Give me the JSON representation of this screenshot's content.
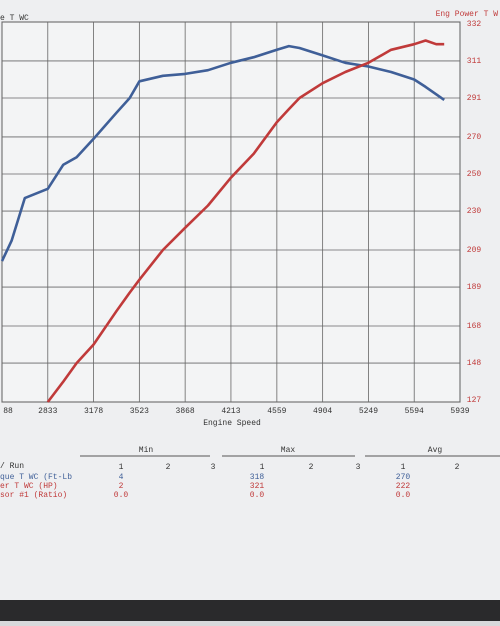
{
  "chart_data": {
    "type": "line",
    "y_title": "e T WC",
    "y2_title": "Eng Power T W",
    "x_title": "Engine Speed",
    "x": [
      2488,
      2560,
      2660,
      2833,
      2950,
      3050,
      3178,
      3350,
      3450,
      3523,
      3700,
      3868,
      4040,
      4213,
      4385,
      4559,
      4650,
      4730,
      4904,
      5075,
      5249,
      5420,
      5594,
      5680,
      5760,
      5820
    ],
    "xlim": [
      2488,
      5939
    ],
    "xticks": [
      {
        "value": 2488,
        "label": "88"
      },
      2833,
      3178,
      3523,
      3868,
      4213,
      4559,
      4904,
      5249,
      5594,
      5939
    ],
    "ylim": [
      127,
      332
    ],
    "yticks": [
      127,
      148,
      168,
      189,
      209,
      230,
      250,
      270,
      291,
      311,
      332
    ],
    "grid": true,
    "series": [
      {
        "color": "#3f5f98",
        "values": [
          203,
          214,
          237,
          242,
          255,
          259,
          269,
          283,
          291,
          300,
          303,
          304,
          306,
          310,
          313,
          317,
          319,
          318,
          314,
          310,
          308,
          305,
          301,
          297,
          293,
          290
        ]
      },
      {
        "color": "#c03a3a",
        "values": [
          null,
          null,
          null,
          127,
          138,
          148,
          158,
          176,
          186,
          193,
          209,
          221,
          233,
          248,
          261,
          278,
          285,
          291,
          299,
          305,
          310,
          317,
          320,
          322,
          320,
          320
        ]
      }
    ]
  },
  "table": {
    "run_label": "/ Run",
    "groups": [
      {
        "title": "Min",
        "runs": [
          "1",
          "2",
          "3"
        ]
      },
      {
        "title": "Max",
        "runs": [
          "1",
          "2",
          "3"
        ]
      },
      {
        "title": "Avg",
        "runs": [
          "1",
          "2"
        ]
      }
    ],
    "rows": [
      [
        "que T WC (Ft-Lb",
        "4",
        "318",
        "270"
      ],
      [
        "er T WC (HP)",
        "2",
        "321",
        "222"
      ],
      [
        "sor #1 (Ratio)",
        "0.0",
        "0.0",
        "0.0"
      ]
    ]
  }
}
